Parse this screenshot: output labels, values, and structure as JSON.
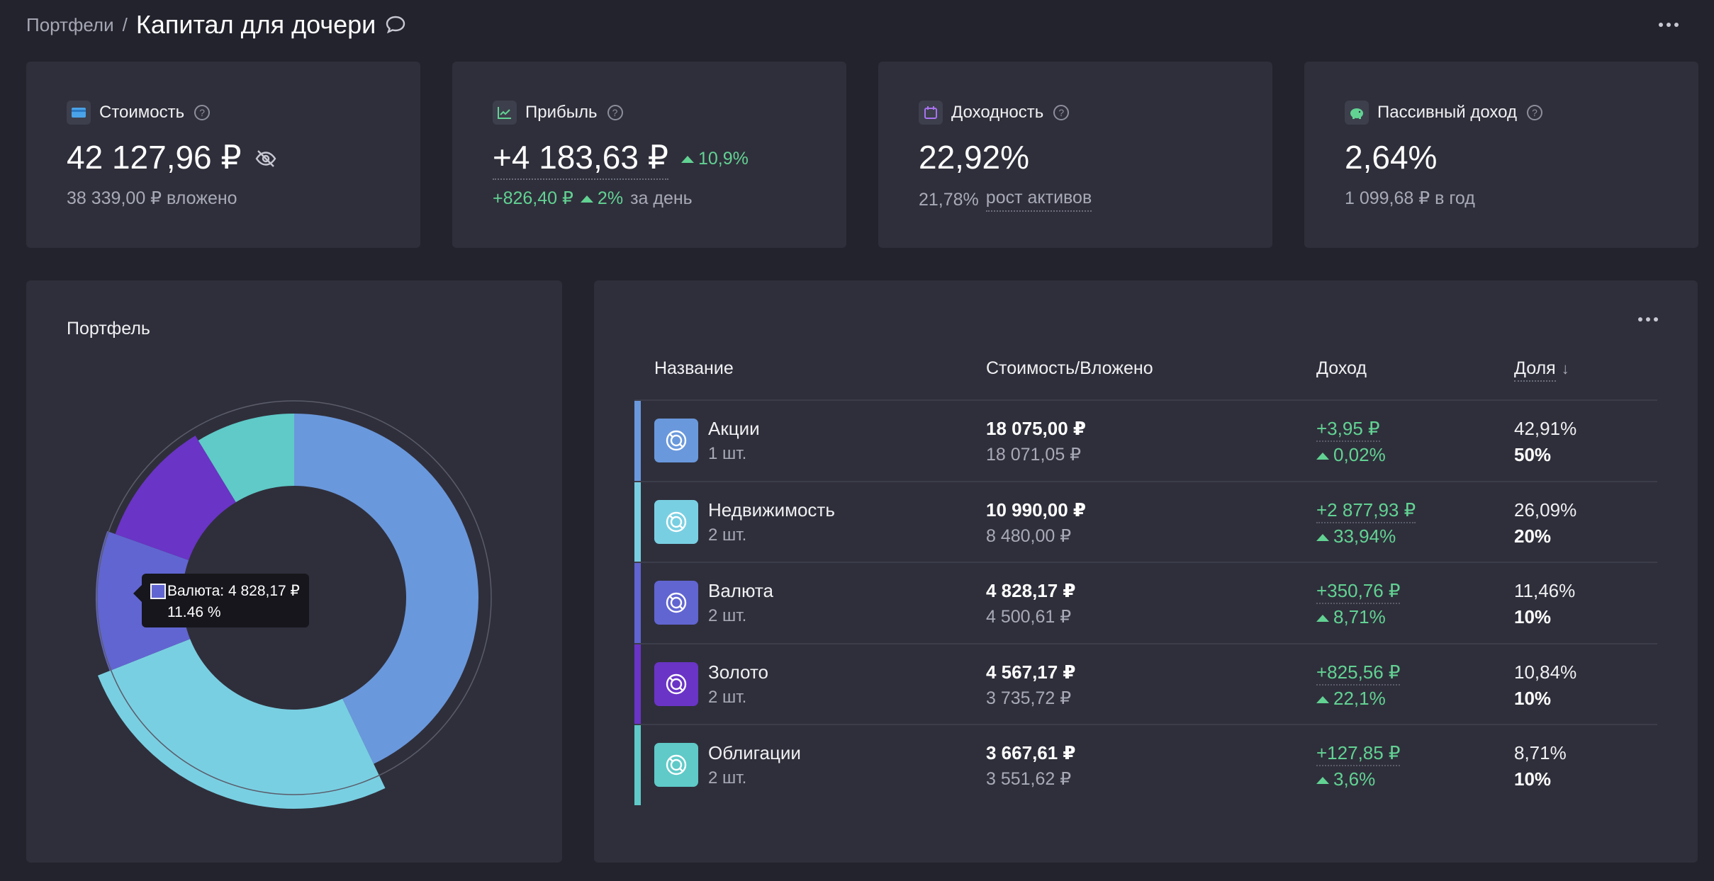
{
  "header": {
    "breadcrumb": "Портфели",
    "separator": "/",
    "title": "Капитал для дочери"
  },
  "cards": {
    "value": {
      "label": "Стоимость",
      "amount": "42 127,96 ₽",
      "sub": "38 339,00 ₽ вложено",
      "icon": "wallet-icon"
    },
    "profit": {
      "label": "Прибыль",
      "amount": "+4 183,63 ₽",
      "change": "10,9%",
      "day_amount": "+826,40 ₽",
      "day_pct": "2%",
      "day_suffix": "за день",
      "icon": "chart-icon"
    },
    "yield": {
      "label": "Доходность",
      "amount": "22,92%",
      "sub_value": "21,78%",
      "sub_link": "рост активов",
      "icon": "calendar-icon"
    },
    "passive": {
      "label": "Пассивный доход",
      "amount": "2,64%",
      "sub": "1 099,68 ₽ в год",
      "icon": "piggy-bank-icon"
    }
  },
  "pie": {
    "title": "Портфель",
    "tooltip_line1": "Валюта: 4 828,17 ₽",
    "tooltip_line2": "11.46 %"
  },
  "table": {
    "headers": {
      "name": "Название",
      "value": "Стоимость/Вложено",
      "income": "Доход",
      "share": "Доля"
    },
    "rows": [
      {
        "name": "Акции",
        "qty": "1 шт.",
        "value": "18 075,00 ₽",
        "invested": "18 071,05 ₽",
        "income": "+3,95 ₽",
        "income_pct": "0,02%",
        "share": "42,91%",
        "target": "50%",
        "color": "#6a98dc"
      },
      {
        "name": "Недвижимость",
        "qty": "2 шт.",
        "value": "10 990,00 ₽",
        "invested": "8 480,00 ₽",
        "income": "+2 877,93 ₽",
        "income_pct": "33,94%",
        "share": "26,09%",
        "target": "20%",
        "color": "#79cfe2"
      },
      {
        "name": "Валюта",
        "qty": "2 шт.",
        "value": "4 828,17 ₽",
        "invested": "4 500,61 ₽",
        "income": "+350,76 ₽",
        "income_pct": "8,71%",
        "share": "11,46%",
        "target": "10%",
        "color": "#6165d1"
      },
      {
        "name": "Золото",
        "qty": "2 шт.",
        "value": "4 567,17 ₽",
        "invested": "3 735,72 ₽",
        "income": "+825,56 ₽",
        "income_pct": "22,1%",
        "share": "10,84%",
        "target": "10%",
        "color": "#6a34c6"
      },
      {
        "name": "Облигации",
        "qty": "2 шт.",
        "value": "3 667,61 ₽",
        "invested": "3 551,62 ₽",
        "income": "+127,85 ₽",
        "income_pct": "3,6%",
        "share": "8,71%",
        "target": "10%",
        "color": "#5fcac8"
      }
    ]
  }
}
